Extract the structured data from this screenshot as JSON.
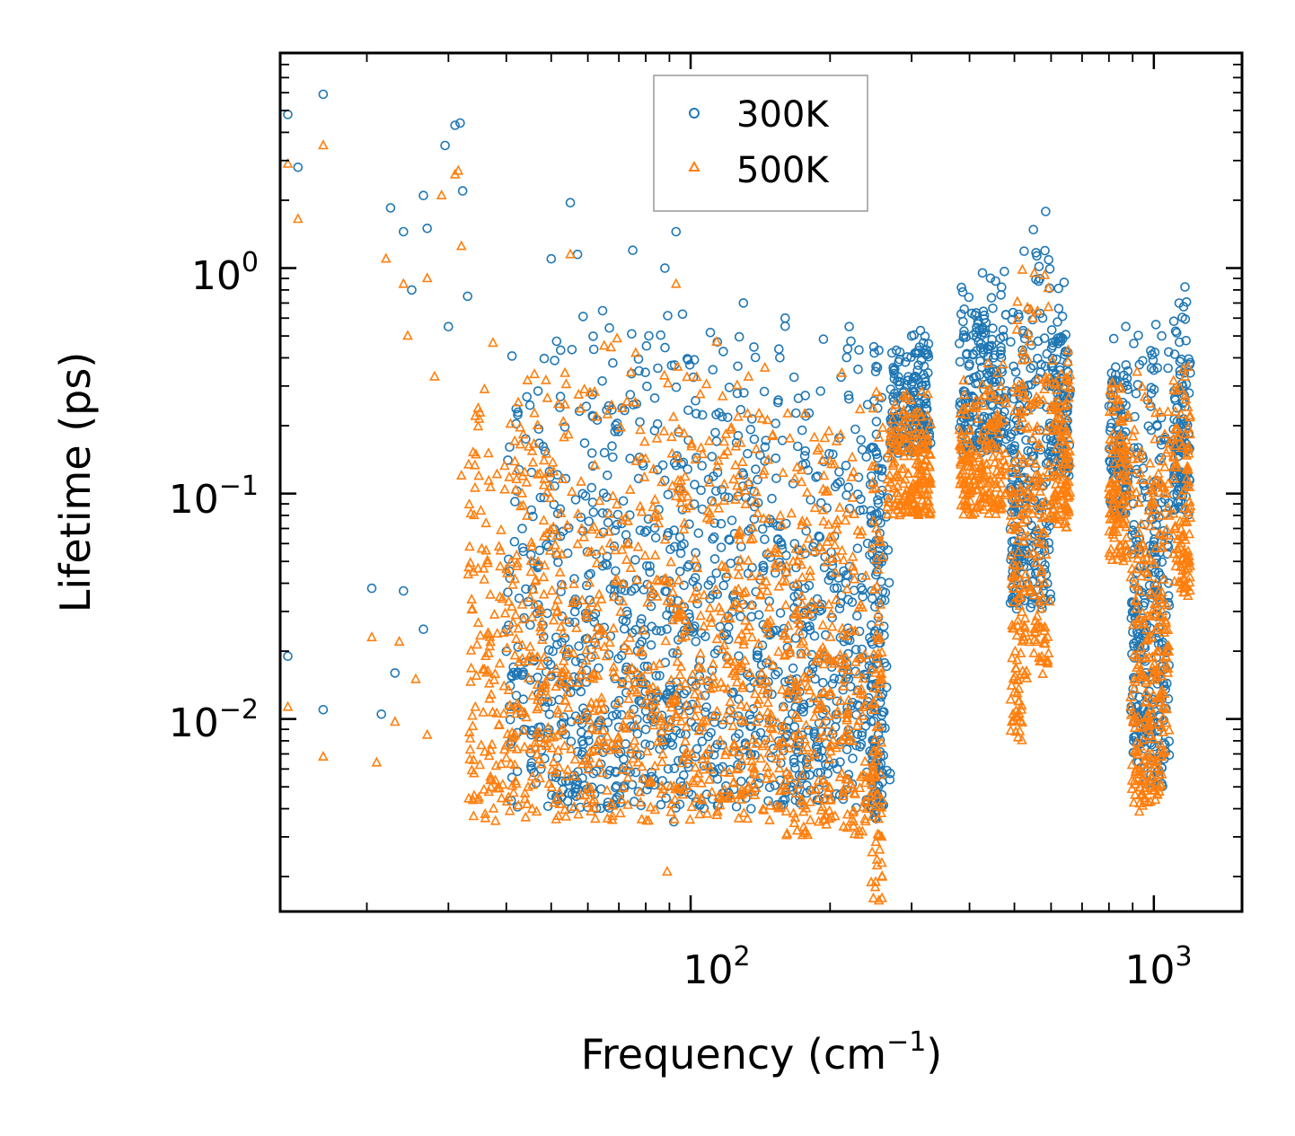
{
  "chart_data": {
    "type": "scatter",
    "xscale": "log",
    "yscale": "log",
    "xlabel_main": "Frequency (cm",
    "xlabel_exp": "−1",
    "xlabel_close": ")",
    "ylabel": "Lifetime (ps)",
    "xlim": [
      13,
      1550
    ],
    "ylim": [
      0.0014,
      9.0
    ],
    "x_ticks": [
      {
        "base": "10",
        "exp": "2",
        "value": 100
      },
      {
        "base": "10",
        "exp": "3",
        "value": 1000
      }
    ],
    "y_ticks": [
      {
        "base": "10",
        "exp": "0",
        "value": 1
      },
      {
        "base": "10",
        "exp": "−1",
        "value": 0.1
      },
      {
        "base": "10",
        "exp": "−2",
        "value": 0.01
      }
    ],
    "legend_position": "top-center",
    "series": [
      {
        "name": "300K",
        "color": "#1f77b4",
        "marker": "circle",
        "points": [
          [
            13.5,
            4.8
          ],
          [
            14.2,
            2.8
          ],
          [
            16.1,
            5.9
          ],
          [
            13.5,
            0.019
          ],
          [
            16.1,
            0.011
          ],
          [
            22.5,
            1.85
          ],
          [
            24,
            1.45
          ],
          [
            26.5,
            2.1
          ],
          [
            27,
            1.5
          ],
          [
            29.5,
            3.5
          ],
          [
            31,
            4.3
          ],
          [
            31.8,
            4.4
          ],
          [
            32.2,
            2.2
          ],
          [
            20.5,
            0.038
          ],
          [
            24,
            0.037
          ],
          [
            26.5,
            0.025
          ],
          [
            23,
            0.016
          ],
          [
            21.5,
            0.0105
          ],
          [
            25,
            0.8
          ],
          [
            30,
            0.55
          ],
          [
            33,
            0.75
          ],
          [
            55,
            1.95
          ],
          [
            93,
            1.45
          ],
          [
            50,
            1.1
          ],
          [
            57,
            1.15
          ],
          [
            75,
            1.2
          ],
          [
            88,
            1.0
          ],
          [
            130,
            0.7
          ],
          [
            160,
            0.6
          ],
          [
            220,
            0.55
          ],
          [
            300,
            0.5
          ],
          [
            92,
            0.0035
          ],
          [
            135,
            0.004
          ]
        ],
        "bands": [
          {
            "x": [
              40,
              160
            ],
            "y": [
              0.004,
              0.7
            ]
          },
          {
            "x": [
              160,
              270
            ],
            "y": [
              0.004,
              0.6
            ]
          },
          {
            "x": [
              245,
              260
            ],
            "y": [
              0.0035,
              0.6
            ]
          },
          {
            "x": [
              270,
              330
            ],
            "y": [
              0.15,
              0.55
            ]
          },
          {
            "x": [
              380,
              480
            ],
            "y": [
              0.15,
              1.0
            ]
          },
          {
            "x": [
              490,
              520
            ],
            "y": [
              0.03,
              1.3
            ]
          },
          {
            "x": [
              520,
              600
            ],
            "y": [
              0.03,
              2.2
            ]
          },
          {
            "x": [
              600,
              660
            ],
            "y": [
              0.12,
              1.0
            ]
          },
          {
            "x": [
              800,
              880
            ],
            "y": [
              0.08,
              0.6
            ]
          },
          {
            "x": [
              890,
              950
            ],
            "y": [
              0.006,
              0.9
            ]
          },
          {
            "x": [
              950,
              1010
            ],
            "y": [
              0.005,
              0.7
            ]
          },
          {
            "x": [
              1010,
              1080
            ],
            "y": [
              0.005,
              1.0
            ]
          },
          {
            "x": [
              1100,
              1200
            ],
            "y": [
              0.08,
              1.0
            ]
          }
        ]
      },
      {
        "name": "500K",
        "color": "#ff7f0e",
        "marker": "triangle",
        "points": [
          [
            13.5,
            2.9
          ],
          [
            14.2,
            1.65
          ],
          [
            16.1,
            3.5
          ],
          [
            13.5,
            0.0113
          ],
          [
            16.1,
            0.0068
          ],
          [
            21,
            0.0064
          ],
          [
            23,
            0.0097
          ],
          [
            25.5,
            0.015
          ],
          [
            27,
            0.0085
          ],
          [
            20.5,
            0.023
          ],
          [
            23.5,
            0.022
          ],
          [
            22,
            1.1
          ],
          [
            24,
            0.85
          ],
          [
            27,
            0.9
          ],
          [
            29,
            2.1
          ],
          [
            31,
            2.6
          ],
          [
            31.5,
            2.7
          ],
          [
            32,
            1.25
          ],
          [
            24.5,
            0.5
          ],
          [
            28,
            0.33
          ],
          [
            32,
            0.12
          ],
          [
            55,
            1.15
          ],
          [
            93,
            0.85
          ],
          [
            89,
            0.0021
          ],
          [
            60,
            0.005
          ],
          [
            34,
            0.0037
          ]
        ],
        "bands": [
          {
            "x": [
              33,
              160
            ],
            "y": [
              0.0035,
              0.5
            ]
          },
          {
            "x": [
              160,
              240
            ],
            "y": [
              0.003,
              0.4
            ]
          },
          {
            "x": [
              245,
              260
            ],
            "y": [
              0.0015,
              0.5
            ]
          },
          {
            "x": [
              265,
              330
            ],
            "y": [
              0.08,
              0.3
            ]
          },
          {
            "x": [
              380,
              480
            ],
            "y": [
              0.08,
              0.4
            ]
          },
          {
            "x": [
              490,
              520
            ],
            "y": [
              0.008,
              0.8
            ]
          },
          {
            "x": [
              520,
              600
            ],
            "y": [
              0.015,
              1.3
            ]
          },
          {
            "x": [
              600,
              660
            ],
            "y": [
              0.07,
              0.5
            ]
          },
          {
            "x": [
              800,
              880
            ],
            "y": [
              0.05,
              0.35
            ]
          },
          {
            "x": [
              890,
              950
            ],
            "y": [
              0.0038,
              0.45
            ]
          },
          {
            "x": [
              950,
              1010
            ],
            "y": [
              0.004,
              0.45
            ]
          },
          {
            "x": [
              1010,
              1080
            ],
            "y": [
              0.0045,
              0.4
            ]
          },
          {
            "x": [
              1100,
              1200
            ],
            "y": [
              0.035,
              0.5
            ]
          }
        ]
      }
    ]
  }
}
